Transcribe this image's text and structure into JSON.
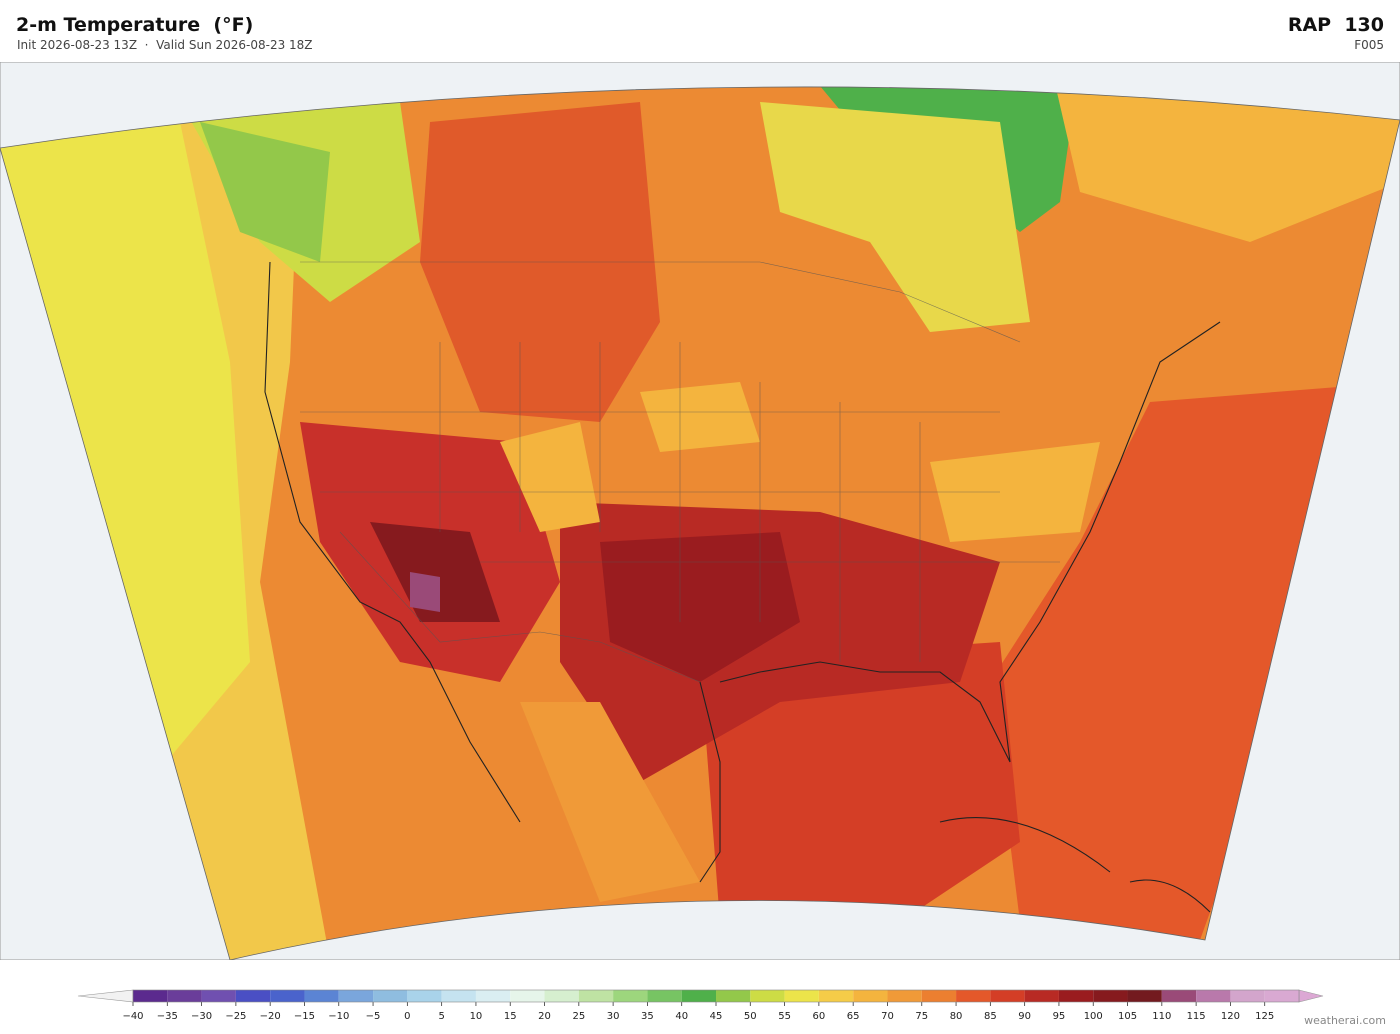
{
  "header": {
    "title": "2-m Temperature  (°F)",
    "subtitle": "Init 2026-08-23 13Z  ·  Valid Sun 2026-08-23 18Z",
    "model": "RAP  130",
    "forecast_hour": "F005"
  },
  "colorbar": {
    "lim": [
      -40,
      130
    ],
    "ticks": [
      {
        "value": -40,
        "label": "−40"
      },
      {
        "value": -35,
        "label": "−35"
      },
      {
        "value": -30,
        "label": "−30"
      },
      {
        "value": -25,
        "label": "−25"
      },
      {
        "value": -20,
        "label": "−20"
      },
      {
        "value": -15,
        "label": "−15"
      },
      {
        "value": -10,
        "label": "−10"
      },
      {
        "value": -5,
        "label": "−5"
      },
      0,
      5,
      10,
      15,
      20,
      25,
      30,
      35,
      40,
      45,
      50,
      55,
      60,
      65,
      70,
      75,
      80,
      85,
      90,
      95,
      100,
      105,
      110,
      115,
      120,
      125
    ],
    "colors": [
      "#5b2a8e",
      "#6a3d9a",
      "#7050b0",
      "#4a4fc4",
      "#4a63cc",
      "#5b84d4",
      "#7aa6dc",
      "#8fbde0",
      "#a9d3ea",
      "#c5e3f0",
      "#daeef2",
      "#e6f5ea",
      "#d6efcf",
      "#bfe3a3",
      "#9dd67d",
      "#77c463",
      "#4fb04a",
      "#93c84a",
      "#cddc45",
      "#ece44a",
      "#f5cc48",
      "#f4b43e",
      "#f09a38",
      "#ec7f30",
      "#e4582a",
      "#d43e26",
      "#b82a24",
      "#9a1c1f",
      "#861a1e",
      "#731a1f",
      "#9a4a78",
      "#b979ab",
      "#d3a5cc",
      "#d9a9d2"
    ]
  },
  "footer": {
    "credit": "weatherai.com"
  }
}
